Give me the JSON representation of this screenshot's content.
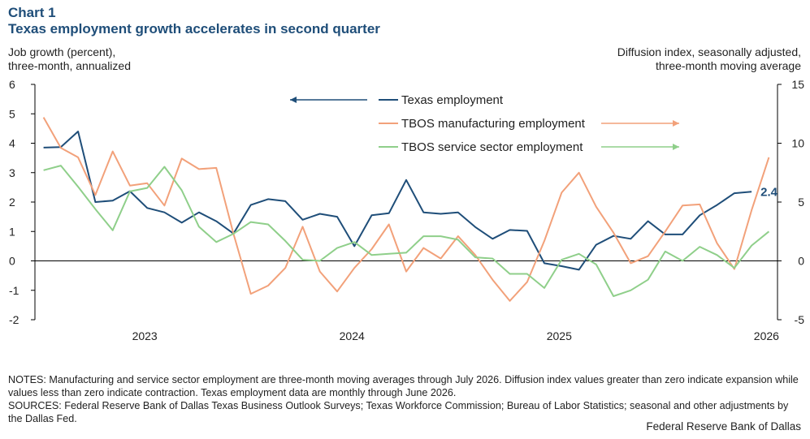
{
  "header": {
    "chart_label": "Chart 1",
    "title": "Texas employment growth accelerates in second quarter"
  },
  "axes_text": {
    "left_line1": "Job growth (percent),",
    "left_line2": "three-month,  annualized",
    "right_line1": "Diffusion index, seasonally adjusted,",
    "right_line2": "three-month  moving average"
  },
  "chart_data": {
    "type": "line",
    "x_ticks": [
      "2023",
      "2024",
      "2025",
      "2026"
    ],
    "x_tick_index": [
      6,
      18,
      30,
      42
    ],
    "y_left": {
      "min": -2,
      "max": 6,
      "ticks": [
        -2,
        -1,
        0,
        1,
        2,
        3,
        4,
        5,
        6
      ]
    },
    "y_right": {
      "min": -5,
      "max": 15,
      "ticks": [
        -5,
        0,
        5,
        10,
        15
      ]
    },
    "grid": false,
    "legend_position": "top-center",
    "series": [
      {
        "name": "Texas employment",
        "axis": "left",
        "color": "#1f4e79",
        "values": [
          3.85,
          3.87,
          4.4,
          2.0,
          2.05,
          2.37,
          1.8,
          1.65,
          1.3,
          1.65,
          1.35,
          0.93,
          1.9,
          2.1,
          2.03,
          1.4,
          1.6,
          1.5,
          0.5,
          1.55,
          1.62,
          2.75,
          1.65,
          1.6,
          1.65,
          1.15,
          0.75,
          1.05,
          1.02,
          -0.08,
          -0.18,
          -0.3,
          0.55,
          0.85,
          0.75,
          1.35,
          0.9,
          0.9,
          1.55,
          1.9,
          2.3,
          2.35
        ]
      },
      {
        "name": "TBOS manufacturing employment",
        "axis": "right",
        "color": "#f2a17a",
        "values": [
          12.2,
          9.6,
          8.8,
          5.6,
          9.3,
          6.4,
          6.6,
          4.7,
          8.7,
          7.8,
          7.9,
          2.3,
          -2.8,
          -2.1,
          -0.6,
          2.9,
          -0.9,
          -2.6,
          -0.6,
          1.0,
          3.1,
          -0.9,
          1.1,
          0.2,
          2.1,
          0.5,
          -1.6,
          -3.4,
          -1.8,
          1.7,
          5.8,
          7.5,
          4.6,
          2.4,
          -0.2,
          0.4,
          2.5,
          4.7,
          4.8,
          1.5,
          -0.7,
          4.3,
          8.8
        ]
      },
      {
        "name": "TBOS service sector employment",
        "axis": "right",
        "color": "#8fcf8a",
        "values": [
          7.7,
          8.1,
          6.3,
          4.4,
          2.6,
          5.9,
          6.2,
          8.0,
          6.0,
          2.9,
          1.6,
          2.3,
          3.3,
          3.1,
          1.7,
          0.1,
          0.0,
          1.1,
          1.6,
          0.5,
          0.6,
          0.7,
          2.1,
          2.1,
          1.8,
          0.3,
          0.2,
          -1.1,
          -1.1,
          -2.3,
          0.1,
          0.6,
          -0.3,
          -3.0,
          -2.5,
          -1.6,
          0.8,
          0.0,
          1.2,
          0.5,
          -0.6,
          1.3,
          2.5
        ]
      }
    ],
    "annotations": [
      {
        "text": "2.4",
        "series": "Texas employment"
      }
    ]
  },
  "footer": {
    "notes": "NOTES: Manufacturing and service sector employment are three-month moving averages through July 2026. Diffusion index values greater than zero indicate expansion while values less than zero indicate contraction. Texas employment data are monthly through June 2026.",
    "sources": "SOURCES: Federal Reserve Bank of Dallas Texas Business Outlook Surveys; Texas Workforce Commission; Bureau of Labor Statistics; seasonal and other adjustments by the Dallas Fed.",
    "credit": "Federal Reserve Bank of Dallas"
  }
}
